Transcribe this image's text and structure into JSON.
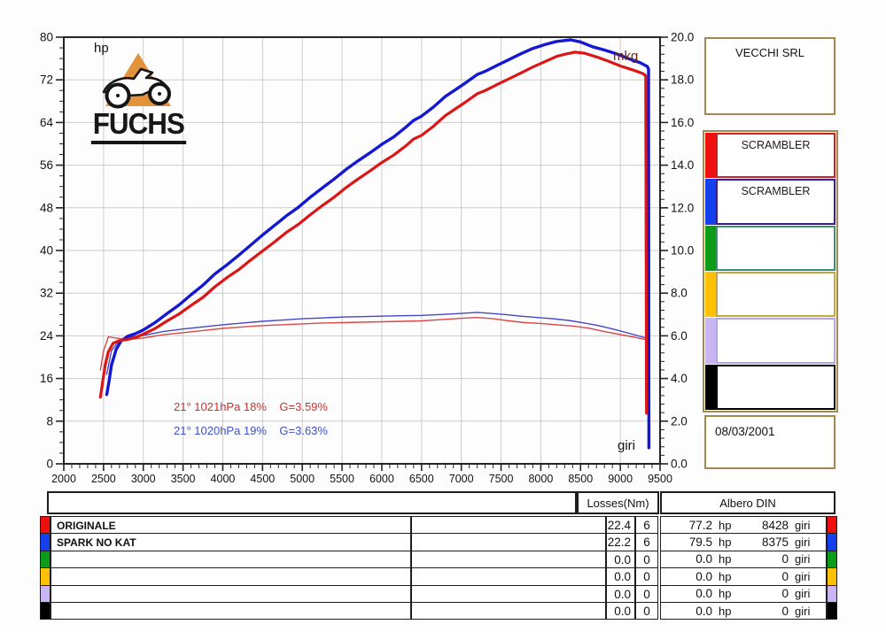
{
  "chart": {
    "y_left_label": "hp",
    "y_right_label": "mkg",
    "x_axis_label": "giri",
    "logo_text": "FUCHS",
    "annotation_red": "21° 1021hPa 18%    G=3.59%",
    "annotation_blue": "21° 1020hPa 19%    G=3.63%"
  },
  "chart_data": {
    "type": "line",
    "title": "",
    "xlabel": "giri",
    "ylabel_left": "hp",
    "ylabel_right": "mkg",
    "x_range": [
      2000,
      9500
    ],
    "x_tick_step": 500,
    "x_minor_step": 100,
    "y_left_range": [
      0,
      80
    ],
    "y_left_tick_step": 8,
    "y_left_minor_step": 2,
    "y_right_range": [
      0.0,
      20.0
    ],
    "y_right_tick_step": 2.0,
    "y_right_minor_step": 0.4,
    "grid": true,
    "grid_color": "#cccccc",
    "series": [
      {
        "name": "spark-no-kat-torque",
        "axis": "right",
        "unit": "mkg",
        "color": "#4646c8",
        "width": 1.4,
        "points": [
          [
            2540,
            4.2
          ],
          [
            2600,
            5.3
          ],
          [
            2700,
            5.8
          ],
          [
            2850,
            5.95
          ],
          [
            3000,
            6.02
          ],
          [
            3250,
            6.2
          ],
          [
            3500,
            6.32
          ],
          [
            3750,
            6.42
          ],
          [
            4000,
            6.52
          ],
          [
            4250,
            6.6
          ],
          [
            4500,
            6.68
          ],
          [
            4750,
            6.74
          ],
          [
            5000,
            6.8
          ],
          [
            5250,
            6.84
          ],
          [
            5500,
            6.88
          ],
          [
            5750,
            6.9
          ],
          [
            6000,
            6.92
          ],
          [
            6250,
            6.94
          ],
          [
            6500,
            6.96
          ],
          [
            6750,
            7.0
          ],
          [
            7000,
            7.05
          ],
          [
            7200,
            7.1
          ],
          [
            7350,
            7.06
          ],
          [
            7550,
            7.0
          ],
          [
            7750,
            6.92
          ],
          [
            7950,
            6.86
          ],
          [
            8150,
            6.8
          ],
          [
            8350,
            6.72
          ],
          [
            8550,
            6.6
          ],
          [
            8750,
            6.46
          ],
          [
            8950,
            6.28
          ],
          [
            9150,
            6.08
          ],
          [
            9300,
            5.92
          ],
          [
            9355,
            5.85
          ],
          [
            9360,
            0.85
          ]
        ]
      },
      {
        "name": "originale-torque",
        "axis": "right",
        "unit": "mkg",
        "color": "#d84848",
        "width": 1.4,
        "points": [
          [
            2460,
            4.4
          ],
          [
            2500,
            5.3
          ],
          [
            2560,
            5.95
          ],
          [
            2650,
            5.9
          ],
          [
            2800,
            5.82
          ],
          [
            3000,
            5.9
          ],
          [
            3250,
            6.05
          ],
          [
            3500,
            6.15
          ],
          [
            3750,
            6.25
          ],
          [
            4000,
            6.35
          ],
          [
            4250,
            6.42
          ],
          [
            4500,
            6.48
          ],
          [
            4750,
            6.52
          ],
          [
            5000,
            6.56
          ],
          [
            5250,
            6.6
          ],
          [
            5500,
            6.62
          ],
          [
            5750,
            6.64
          ],
          [
            6000,
            6.66
          ],
          [
            6250,
            6.68
          ],
          [
            6500,
            6.7
          ],
          [
            6750,
            6.76
          ],
          [
            7000,
            6.82
          ],
          [
            7200,
            6.86
          ],
          [
            7400,
            6.8
          ],
          [
            7600,
            6.7
          ],
          [
            7800,
            6.62
          ],
          [
            8000,
            6.58
          ],
          [
            8200,
            6.52
          ],
          [
            8400,
            6.46
          ],
          [
            8600,
            6.36
          ],
          [
            8800,
            6.2
          ],
          [
            9000,
            6.06
          ],
          [
            9200,
            5.92
          ],
          [
            9320,
            5.82
          ],
          [
            9330,
            2.38
          ]
        ]
      },
      {
        "name": "spark-no-kat-power",
        "axis": "left",
        "unit": "hp",
        "color": "#1518d2",
        "width": 3.4,
        "points": [
          [
            2540,
            13
          ],
          [
            2570,
            15.5
          ],
          [
            2600,
            18.5
          ],
          [
            2660,
            21.5
          ],
          [
            2720,
            23.0
          ],
          [
            2800,
            23.9
          ],
          [
            2900,
            24.4
          ],
          [
            3000,
            25.1
          ],
          [
            3150,
            26.5
          ],
          [
            3300,
            28.2
          ],
          [
            3450,
            29.8
          ],
          [
            3600,
            31.7
          ],
          [
            3750,
            33.5
          ],
          [
            3900,
            35.6
          ],
          [
            4050,
            37.3
          ],
          [
            4200,
            39.1
          ],
          [
            4350,
            41.0
          ],
          [
            4500,
            42.9
          ],
          [
            4650,
            44.7
          ],
          [
            4800,
            46.5
          ],
          [
            4950,
            48.1
          ],
          [
            5100,
            50.0
          ],
          [
            5250,
            51.7
          ],
          [
            5400,
            53.4
          ],
          [
            5550,
            55.2
          ],
          [
            5700,
            56.8
          ],
          [
            5850,
            58.3
          ],
          [
            6000,
            59.9
          ],
          [
            6150,
            61.3
          ],
          [
            6300,
            63.1
          ],
          [
            6400,
            64.4
          ],
          [
            6500,
            65.2
          ],
          [
            6650,
            66.9
          ],
          [
            6800,
            68.9
          ],
          [
            6900,
            69.9
          ],
          [
            7050,
            71.4
          ],
          [
            7200,
            73.0
          ],
          [
            7300,
            73.6
          ],
          [
            7450,
            74.7
          ],
          [
            7600,
            75.8
          ],
          [
            7750,
            76.9
          ],
          [
            7900,
            77.9
          ],
          [
            8050,
            78.6
          ],
          [
            8200,
            79.2
          ],
          [
            8375,
            79.5
          ],
          [
            8500,
            79.1
          ],
          [
            8650,
            78.2
          ],
          [
            8800,
            77.6
          ],
          [
            8950,
            76.9
          ],
          [
            9100,
            76.0
          ],
          [
            9250,
            75.2
          ],
          [
            9340,
            74.5
          ],
          [
            9355,
            74.0
          ],
          [
            9360,
            3.0
          ]
        ]
      },
      {
        "name": "originale-power",
        "axis": "left",
        "unit": "hp",
        "color": "#dc1616",
        "width": 3.2,
        "points": [
          [
            2460,
            12.5
          ],
          [
            2490,
            15.5
          ],
          [
            2520,
            18.5
          ],
          [
            2560,
            21.0
          ],
          [
            2620,
            22.6
          ],
          [
            2700,
            23.1
          ],
          [
            2800,
            23.3
          ],
          [
            2900,
            23.7
          ],
          [
            3000,
            24.3
          ],
          [
            3150,
            25.4
          ],
          [
            3300,
            26.8
          ],
          [
            3450,
            28.1
          ],
          [
            3600,
            29.7
          ],
          [
            3750,
            31.2
          ],
          [
            3900,
            33.2
          ],
          [
            4050,
            34.9
          ],
          [
            4200,
            36.4
          ],
          [
            4350,
            38.2
          ],
          [
            4500,
            39.9
          ],
          [
            4650,
            41.6
          ],
          [
            4800,
            43.4
          ],
          [
            4950,
            44.9
          ],
          [
            5100,
            46.7
          ],
          [
            5250,
            48.4
          ],
          [
            5400,
            50.0
          ],
          [
            5550,
            51.8
          ],
          [
            5700,
            53.4
          ],
          [
            5850,
            54.9
          ],
          [
            6000,
            56.5
          ],
          [
            6150,
            57.9
          ],
          [
            6300,
            59.6
          ],
          [
            6400,
            60.9
          ],
          [
            6500,
            61.6
          ],
          [
            6650,
            63.3
          ],
          [
            6800,
            65.3
          ],
          [
            6900,
            66.3
          ],
          [
            7050,
            67.8
          ],
          [
            7200,
            69.4
          ],
          [
            7300,
            70.0
          ],
          [
            7450,
            71.1
          ],
          [
            7600,
            72.2
          ],
          [
            7750,
            73.3
          ],
          [
            7900,
            74.4
          ],
          [
            8050,
            75.4
          ],
          [
            8200,
            76.4
          ],
          [
            8300,
            76.8
          ],
          [
            8428,
            77.2
          ],
          [
            8550,
            77.0
          ],
          [
            8700,
            76.3
          ],
          [
            8850,
            75.5
          ],
          [
            9000,
            74.6
          ],
          [
            9150,
            73.9
          ],
          [
            9280,
            73.2
          ],
          [
            9320,
            72.8
          ],
          [
            9330,
            9.5
          ]
        ]
      }
    ]
  },
  "side_panel": {
    "dealer": "VECCHI SRL",
    "date": "08/03/2001",
    "runs": [
      {
        "label": "SCRAMBLER",
        "bar_color": "#ee0f0f",
        "border_color": "#cf2020"
      },
      {
        "label": "SCRAMBLER",
        "bar_color": "#1440ee",
        "border_color": "#3c1d8c"
      },
      {
        "label": "",
        "bar_color": "#0d9c1a",
        "border_color": "#3f9070"
      },
      {
        "label": "",
        "bar_color": "#ffc104",
        "border_color": "#c2a845"
      },
      {
        "label": "",
        "bar_color": "#c9b5f2",
        "border_color": "#b4a3e6"
      },
      {
        "label": "",
        "bar_color": "#000000",
        "border_color": "#000000"
      }
    ]
  },
  "table": {
    "losses_header": "Losses(Nm)",
    "albero_header": "Albero DIN",
    "hp_unit": "hp",
    "rpm_unit": "giri",
    "rows": [
      {
        "color": "#ee0f0f",
        "label": "ORIGINALE",
        "loss": "22.4",
        "n": "6",
        "hp": "77.2",
        "rpm": "8428"
      },
      {
        "color": "#1440ee",
        "label": "SPARK NO KAT",
        "loss": "22.2",
        "n": "6",
        "hp": "79.5",
        "rpm": "8375"
      },
      {
        "color": "#0d9c1a",
        "label": "",
        "loss": "0.0",
        "n": "0",
        "hp": "0.0",
        "rpm": "0"
      },
      {
        "color": "#ffc104",
        "label": "",
        "loss": "0.0",
        "n": "0",
        "hp": "0.0",
        "rpm": "0"
      },
      {
        "color": "#c9b5f2",
        "label": "",
        "loss": "0.0",
        "n": "0",
        "hp": "0.0",
        "rpm": "0"
      },
      {
        "color": "#000000",
        "label": "",
        "loss": "0.0",
        "n": "0",
        "hp": "0.0",
        "rpm": "0"
      }
    ]
  }
}
